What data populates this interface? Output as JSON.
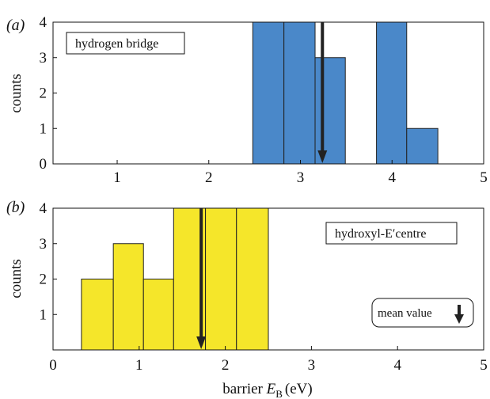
{
  "colors": {
    "panel_a_bar": "#4a88c9",
    "panel_b_bar": "#f5e62a",
    "bar_edge": "#222222",
    "arrow": "#222222"
  },
  "shared": {
    "xlabel_prefix": "barrier ",
    "xlabel_symbol": "E",
    "xlabel_subscript": "B",
    "xlabel_unit": "(eV)",
    "legend_text": "mean value",
    "legend_icon": "down-arrow-icon"
  },
  "chart_data": [
    {
      "type": "bar",
      "panel_label": "(a)",
      "ylabel": "counts",
      "annotation": "hydrogen bridge",
      "xlim": [
        0.3,
        5
      ],
      "ylim": [
        0,
        4
      ],
      "xticks": [
        "1",
        "2",
        "3",
        "4",
        "5"
      ],
      "yticks": [
        "0",
        "1",
        "2",
        "3",
        "4"
      ],
      "bins": [
        {
          "x0": 2.48,
          "x1": 2.82,
          "count": 4
        },
        {
          "x0": 2.82,
          "x1": 3.16,
          "count": 4
        },
        {
          "x0": 3.16,
          "x1": 3.49,
          "count": 3
        },
        {
          "x0": 3.49,
          "x1": 3.83,
          "count": 0
        },
        {
          "x0": 3.83,
          "x1": 4.16,
          "count": 4
        },
        {
          "x0": 4.16,
          "x1": 4.5,
          "count": 1
        }
      ],
      "mean": 3.24
    },
    {
      "type": "bar",
      "panel_label": "(b)",
      "ylabel": "counts",
      "annotation": "hydroxyl-E′centre",
      "xlim": [
        0,
        5
      ],
      "ylim": [
        0,
        4
      ],
      "xticks": [
        "0",
        "1",
        "2",
        "3",
        "4",
        "5"
      ],
      "yticks": [
        "1",
        "2",
        "3",
        "4"
      ],
      "bins": [
        {
          "x0": 0.33,
          "x1": 0.7,
          "count": 2
        },
        {
          "x0": 0.7,
          "x1": 1.05,
          "count": 3
        },
        {
          "x0": 1.05,
          "x1": 1.4,
          "count": 2
        },
        {
          "x0": 1.4,
          "x1": 1.77,
          "count": 4
        },
        {
          "x0": 1.77,
          "x1": 2.13,
          "count": 4
        },
        {
          "x0": 2.13,
          "x1": 2.5,
          "count": 4
        }
      ],
      "mean": 1.72
    }
  ]
}
